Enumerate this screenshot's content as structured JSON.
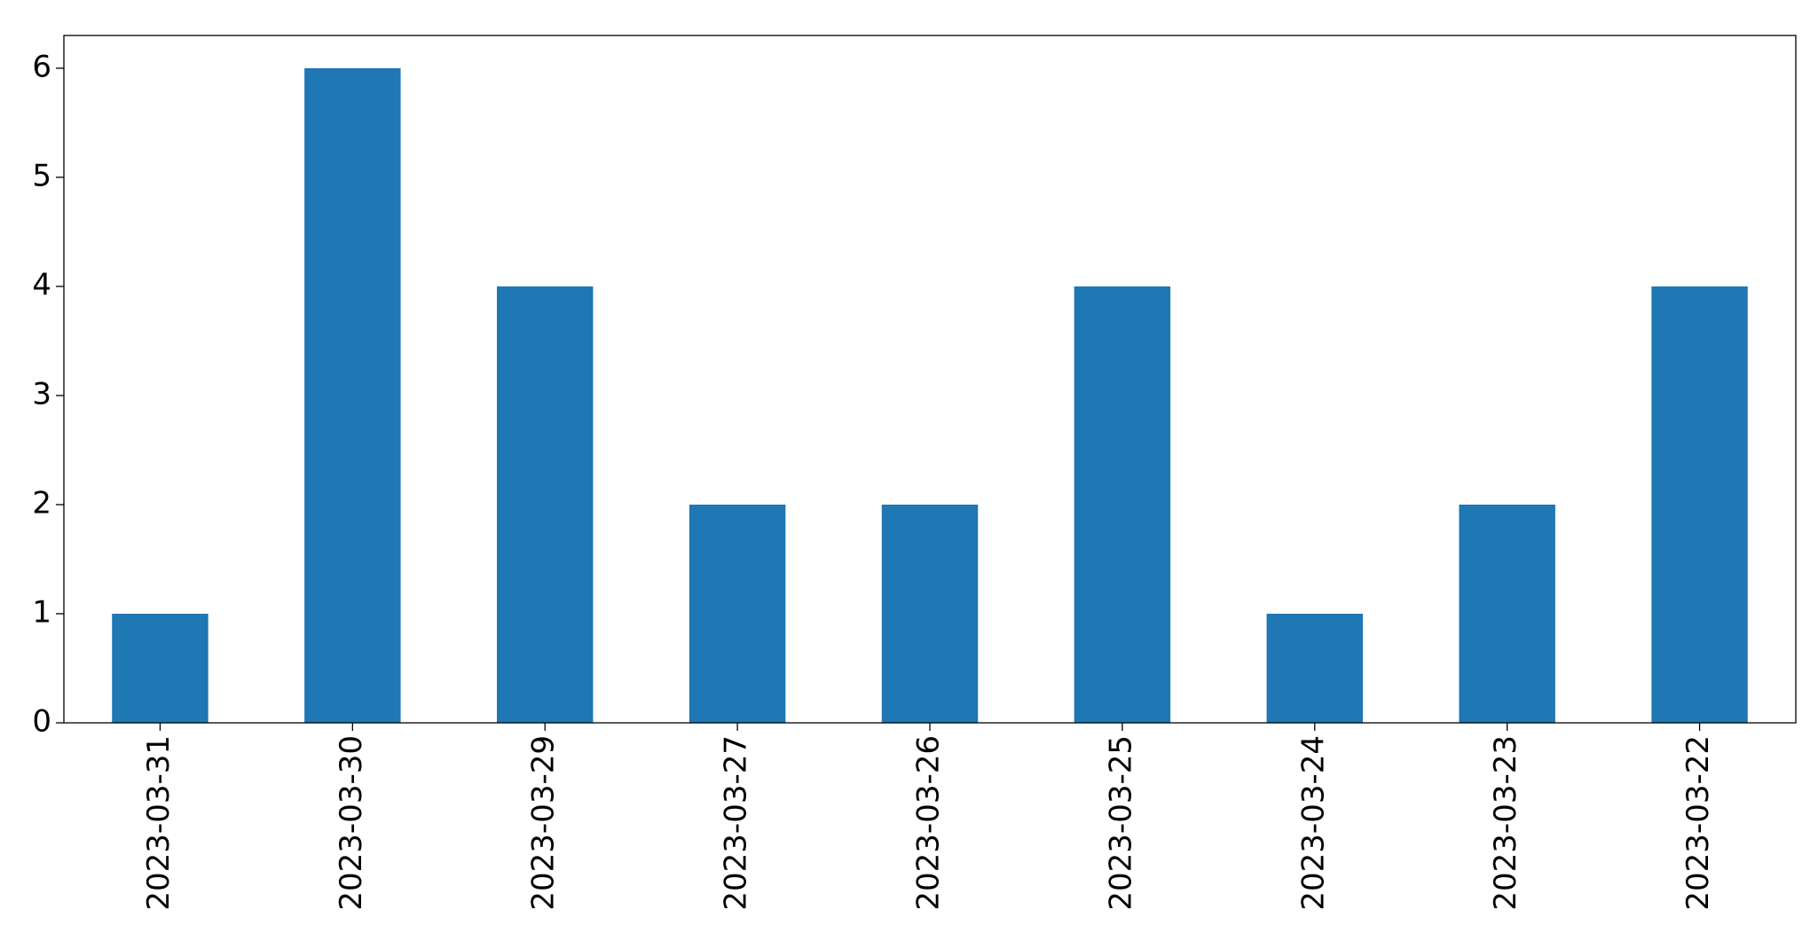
{
  "chart_data": {
    "type": "bar",
    "categories": [
      "2023-03-31",
      "2023-03-30",
      "2023-03-29",
      "2023-03-27",
      "2023-03-26",
      "2023-03-25",
      "2023-03-24",
      "2023-03-23",
      "2023-03-22"
    ],
    "values": [
      1,
      6,
      4,
      2,
      2,
      4,
      1,
      2,
      4
    ],
    "color": "#1f77b4",
    "ylim": [
      0,
      6.3
    ],
    "yticks": [
      0,
      1,
      2,
      3,
      4,
      5,
      6
    ],
    "grid": false
  }
}
